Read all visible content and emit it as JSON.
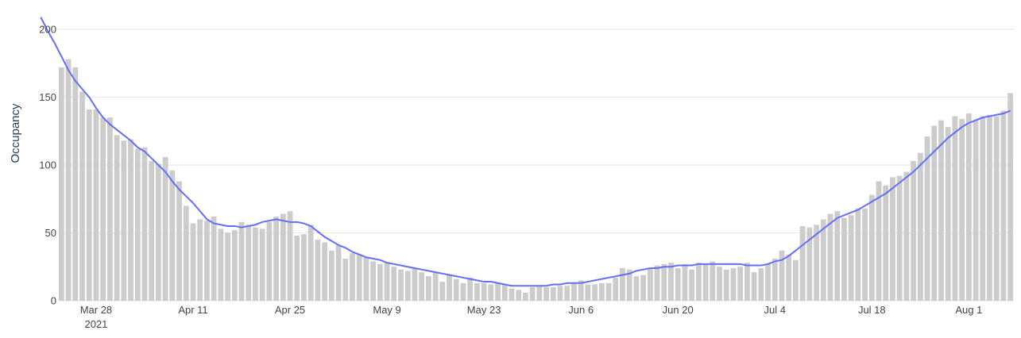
{
  "colors": {
    "bar": "#cccccc",
    "line": "#636efa",
    "grid": "#e6e6e6",
    "text": "#444444"
  },
  "chart_data": {
    "type": "bar",
    "ylabel": "Occupancy",
    "xlabel": "",
    "ylim": [
      0,
      200
    ],
    "yticks": [
      0,
      50,
      100,
      150,
      200
    ],
    "grid": "horizontal",
    "x_start": "2021-03-23",
    "x_ticks": [
      {
        "date": "2021-03-28",
        "label": "Mar 28",
        "sublabel": "2021"
      },
      {
        "date": "2021-04-11",
        "label": "Apr 11"
      },
      {
        "date": "2021-04-25",
        "label": "Apr 25"
      },
      {
        "date": "2021-05-09",
        "label": "May 9"
      },
      {
        "date": "2021-05-23",
        "label": "May 23"
      },
      {
        "date": "2021-06-06",
        "label": "Jun 6"
      },
      {
        "date": "2021-06-20",
        "label": "Jun 20"
      },
      {
        "date": "2021-07-04",
        "label": "Jul 4"
      },
      {
        "date": "2021-07-18",
        "label": "Jul 18"
      },
      {
        "date": "2021-08-01",
        "label": "Aug 1"
      }
    ],
    "series": [
      {
        "type": "bar",
        "values": [
          172,
          178,
          172,
          154,
          141,
          141,
          135,
          135,
          122,
          118,
          119,
          112,
          113,
          103,
          101,
          106,
          96,
          88,
          70,
          57,
          60,
          59,
          62,
          53,
          50,
          52,
          58,
          56,
          54,
          53,
          58,
          62,
          64,
          66,
          48,
          49,
          56,
          45,
          43,
          37,
          41,
          31,
          35,
          34,
          32,
          29,
          27,
          28,
          25,
          23,
          22,
          24,
          21,
          18,
          21,
          14,
          19,
          16,
          13,
          17,
          13,
          13,
          12,
          13,
          12,
          9,
          8,
          6,
          10,
          11,
          10,
          10,
          11,
          11,
          13,
          15,
          12,
          12,
          13,
          13,
          17,
          24,
          23,
          18,
          19,
          24,
          26,
          27,
          28,
          24,
          27,
          23,
          28,
          27,
          29,
          25,
          23,
          24,
          25,
          28,
          21,
          24,
          27,
          31,
          37,
          34,
          30,
          55,
          54,
          56,
          60,
          64,
          66,
          61,
          63,
          68,
          68,
          78,
          88,
          85,
          91,
          92,
          95,
          103,
          109,
          121,
          129,
          133,
          128,
          136,
          134,
          138,
          133,
          136,
          137,
          136,
          140,
          153
        ]
      },
      {
        "type": "line",
        "values": [
          209,
          199,
          190,
          180,
          170,
          162,
          156,
          150,
          142,
          135,
          130,
          126,
          122,
          118,
          113,
          110,
          105,
          100,
          95,
          88,
          82,
          77,
          72,
          66,
          60,
          57,
          56,
          55,
          55,
          54,
          55,
          56,
          58,
          59,
          60,
          59,
          58,
          58,
          57,
          55,
          51,
          47,
          44,
          41,
          39,
          36,
          34,
          32,
          31,
          30,
          28,
          27,
          26,
          25,
          24,
          23,
          22,
          21,
          20,
          19,
          18,
          17,
          16,
          15,
          14,
          14,
          13,
          12,
          11,
          11,
          11,
          11,
          11,
          11,
          12,
          12,
          13,
          13,
          13,
          14,
          15,
          16,
          17,
          18,
          19,
          20,
          22,
          23,
          24,
          24,
          25,
          25,
          26,
          26,
          26,
          27,
          27,
          27,
          27,
          27,
          27,
          27,
          26,
          26,
          26,
          27,
          29,
          30,
          33,
          37,
          41,
          45,
          49,
          53,
          57,
          61,
          63,
          65,
          67,
          70,
          73,
          76,
          79,
          83,
          87,
          91,
          95,
          100,
          105,
          110,
          115,
          120,
          124,
          128,
          131,
          133,
          135,
          136,
          137,
          138,
          140
        ]
      }
    ]
  }
}
